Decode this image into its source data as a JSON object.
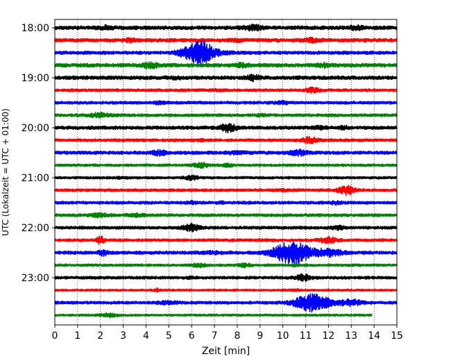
{
  "chart_data": {
    "type": "line",
    "subtype": "helicorder",
    "title": "",
    "xlabel": "Zeit  [min]",
    "ylabel": "UTC (Lokalzeit = UTC + 01:00)",
    "xlim": [
      0,
      15
    ],
    "x_ticks": [
      "0",
      "1",
      "2",
      "3",
      "4",
      "5",
      "6",
      "7",
      "8",
      "9",
      "10",
      "11",
      "12",
      "13",
      "14",
      "15"
    ],
    "y_ticks": [
      "18:00",
      "19:00",
      "20:00",
      "21:00",
      "22:00",
      "23:00"
    ],
    "grid": "vertical dotted lines at each minute",
    "trace_interval_minutes": 15,
    "color_cycle": [
      "#000000",
      "#ff0000",
      "#0000ff",
      "#008000"
    ],
    "last_trace_end_minute": 13.9,
    "rows": [
      {
        "start": "18:00",
        "color": "#000000",
        "noise": 1.0,
        "events": [
          {
            "t": 2.2,
            "amp": 1.4,
            "w": 0.3
          },
          {
            "t": 8.7,
            "amp": 1.6,
            "w": 0.4
          },
          {
            "t": 13.2,
            "amp": 1.5,
            "w": 0.3
          }
        ]
      },
      {
        "start": "18:15",
        "color": "#ff0000",
        "noise": 1.0,
        "events": [
          {
            "t": 3.3,
            "amp": 1.3,
            "w": 0.3
          },
          {
            "t": 11.3,
            "amp": 1.5,
            "w": 0.3
          },
          {
            "t": 8.0,
            "amp": 1.2,
            "w": 0.3
          }
        ]
      },
      {
        "start": "18:30",
        "color": "#0000ff",
        "noise": 0.9,
        "events": [
          {
            "t": 6.4,
            "amp": 4.8,
            "w": 0.5
          },
          {
            "t": 5.7,
            "amp": 2.0,
            "w": 0.4
          },
          {
            "t": 7.2,
            "amp": 1.4,
            "w": 0.5
          }
        ]
      },
      {
        "start": "18:45",
        "color": "#008000",
        "noise": 1.0,
        "events": [
          {
            "t": 4.2,
            "amp": 1.8,
            "w": 0.3
          },
          {
            "t": 8.2,
            "amp": 1.4,
            "w": 0.3
          },
          {
            "t": 11.8,
            "amp": 1.4,
            "w": 0.3
          }
        ]
      },
      {
        "start": "19:00",
        "color": "#000000",
        "noise": 1.0,
        "events": [
          {
            "t": 8.7,
            "amp": 1.7,
            "w": 0.3
          },
          {
            "t": 5.2,
            "amp": 1.2,
            "w": 0.3
          }
        ]
      },
      {
        "start": "19:15",
        "color": "#ff0000",
        "noise": 0.8,
        "events": [
          {
            "t": 11.3,
            "amp": 1.7,
            "w": 0.3
          },
          {
            "t": 7.0,
            "amp": 1.2,
            "w": 0.3
          }
        ]
      },
      {
        "start": "19:30",
        "color": "#0000ff",
        "noise": 0.8,
        "events": [
          {
            "t": 4.6,
            "amp": 1.4,
            "w": 0.3
          },
          {
            "t": 10.0,
            "amp": 1.4,
            "w": 0.3
          }
        ]
      },
      {
        "start": "19:45",
        "color": "#008000",
        "noise": 0.8,
        "events": [
          {
            "t": 2.0,
            "amp": 1.8,
            "w": 0.4
          },
          {
            "t": 9.0,
            "amp": 1.2,
            "w": 0.3
          }
        ]
      },
      {
        "start": "20:00",
        "color": "#000000",
        "noise": 0.9,
        "events": [
          {
            "t": 7.6,
            "amp": 2.3,
            "w": 0.35
          },
          {
            "t": 11.6,
            "amp": 1.5,
            "w": 0.3
          },
          {
            "t": 12.7,
            "amp": 1.4,
            "w": 0.2
          }
        ]
      },
      {
        "start": "20:15",
        "color": "#ff0000",
        "noise": 0.8,
        "events": [
          {
            "t": 11.2,
            "amp": 2.0,
            "w": 0.35
          },
          {
            "t": 6.5,
            "amp": 1.2,
            "w": 0.3
          }
        ]
      },
      {
        "start": "20:30",
        "color": "#0000ff",
        "noise": 0.9,
        "events": [
          {
            "t": 4.6,
            "amp": 1.7,
            "w": 0.3
          },
          {
            "t": 10.7,
            "amp": 1.7,
            "w": 0.4
          },
          {
            "t": 8.0,
            "amp": 1.3,
            "w": 0.4
          }
        ]
      },
      {
        "start": "20:45",
        "color": "#008000",
        "noise": 0.7,
        "events": [
          {
            "t": 6.4,
            "amp": 1.9,
            "w": 0.35
          },
          {
            "t": 7.6,
            "amp": 1.5,
            "w": 0.2
          }
        ]
      },
      {
        "start": "21:00",
        "color": "#000000",
        "noise": 0.7,
        "events": [
          {
            "t": 6.0,
            "amp": 1.8,
            "w": 0.3
          },
          {
            "t": 3.0,
            "amp": 1.2,
            "w": 0.3
          }
        ]
      },
      {
        "start": "21:15",
        "color": "#ff0000",
        "noise": 0.8,
        "events": [
          {
            "t": 12.8,
            "amp": 2.5,
            "w": 0.35
          },
          {
            "t": 10.0,
            "amp": 1.2,
            "w": 0.3
          }
        ]
      },
      {
        "start": "21:30",
        "color": "#0000ff",
        "noise": 0.8,
        "events": [
          {
            "t": 6.0,
            "amp": 1.5,
            "w": 0.2
          },
          {
            "t": 12.3,
            "amp": 1.4,
            "w": 0.3
          },
          {
            "t": 7.3,
            "amp": 1.3,
            "w": 0.2
          }
        ]
      },
      {
        "start": "21:45",
        "color": "#008000",
        "noise": 0.8,
        "events": [
          {
            "t": 2.0,
            "amp": 1.6,
            "w": 0.4
          },
          {
            "t": 3.6,
            "amp": 1.4,
            "w": 0.4
          }
        ]
      },
      {
        "start": "22:00",
        "color": "#000000",
        "noise": 0.8,
        "events": [
          {
            "t": 6.0,
            "amp": 2.2,
            "w": 0.35
          },
          {
            "t": 12.4,
            "amp": 1.6,
            "w": 0.3
          }
        ]
      },
      {
        "start": "22:15",
        "color": "#ff0000",
        "noise": 0.8,
        "events": [
          {
            "t": 2.0,
            "amp": 2.4,
            "w": 0.15
          },
          {
            "t": 12.0,
            "amp": 1.9,
            "w": 0.4
          },
          {
            "t": 9.2,
            "amp": 1.2,
            "w": 0.3
          }
        ]
      },
      {
        "start": "22:30",
        "color": "#0000ff",
        "noise": 0.9,
        "events": [
          {
            "t": 10.4,
            "amp": 4.6,
            "w": 0.8
          },
          {
            "t": 2.1,
            "amp": 1.8,
            "w": 0.2
          },
          {
            "t": 12.0,
            "amp": 2.0,
            "w": 0.6
          },
          {
            "t": 7.0,
            "amp": 1.3,
            "w": 0.4
          }
        ]
      },
      {
        "start": "22:45",
        "color": "#008000",
        "noise": 0.7,
        "events": [
          {
            "t": 6.3,
            "amp": 1.6,
            "w": 0.35
          },
          {
            "t": 8.3,
            "amp": 1.8,
            "w": 0.25
          },
          {
            "t": 10.5,
            "amp": 1.2,
            "w": 0.3
          }
        ]
      },
      {
        "start": "23:00",
        "color": "#000000",
        "noise": 0.8,
        "events": [
          {
            "t": 10.9,
            "amp": 2.0,
            "w": 0.35
          },
          {
            "t": 6.0,
            "amp": 1.2,
            "w": 0.3
          }
        ]
      },
      {
        "start": "23:15",
        "color": "#ff0000",
        "noise": 0.6,
        "events": [
          {
            "t": 4.5,
            "amp": 1.8,
            "w": 0.1
          },
          {
            "t": 10.5,
            "amp": 1.3,
            "w": 0.3
          }
        ]
      },
      {
        "start": "23:30",
        "color": "#0000ff",
        "noise": 0.8,
        "events": [
          {
            "t": 11.3,
            "amp": 4.2,
            "w": 0.75
          },
          {
            "t": 5.0,
            "amp": 1.5,
            "w": 0.4
          },
          {
            "t": 13.0,
            "amp": 2.0,
            "w": 0.5
          }
        ]
      },
      {
        "start": "23:45",
        "color": "#008000",
        "noise": 0.6,
        "events": [
          {
            "t": 2.4,
            "amp": 1.8,
            "w": 0.35
          }
        ]
      }
    ]
  }
}
